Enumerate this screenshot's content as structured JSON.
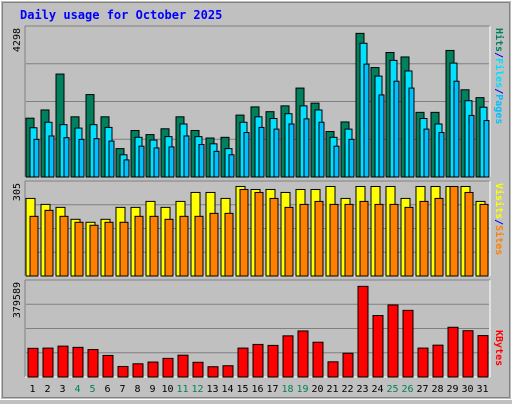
{
  "title": "Daily usage for October 2025",
  "colors": {
    "background": "#c0c0c0",
    "hits": "#00805c",
    "files": "#00e0ff",
    "pages": "#00c0ff",
    "visits": "#ffff00",
    "sites": "#ff8000",
    "kbytes": "#ff0000",
    "title_text": "#0000ff"
  },
  "chart_data": [
    {
      "type": "bar",
      "categories": [
        "1",
        "2",
        "3",
        "4",
        "5",
        "6",
        "7",
        "8",
        "9",
        "10",
        "11",
        "12",
        "13",
        "14",
        "15",
        "16",
        "17",
        "18",
        "19",
        "20",
        "21",
        "22",
        "23",
        "24",
        "25",
        "26",
        "27",
        "28",
        "29",
        "30",
        "31"
      ],
      "weekend_categories": [
        "4",
        "5",
        "11",
        "12",
        "18",
        "19",
        "25",
        "26"
      ],
      "axis_max_label": "4298",
      "ylim": [
        0,
        4298
      ],
      "series": [
        {
          "name": "Hits",
          "values": [
            1720,
            1960,
            3010,
            1760,
            2410,
            1760,
            830,
            1360,
            1240,
            1410,
            1760,
            1360,
            1140,
            1160,
            1810,
            2050,
            1910,
            2080,
            2600,
            2160,
            1330,
            1610,
            4200,
            3200,
            3640,
            3510,
            1890,
            1890,
            3700,
            2550,
            2320
          ]
        },
        {
          "name": "Files",
          "values": [
            1440,
            1600,
            1530,
            1430,
            1530,
            1450,
            650,
            1160,
            1080,
            1180,
            1550,
            1180,
            970,
            830,
            1600,
            1760,
            1710,
            1850,
            2080,
            1960,
            1160,
            1400,
            3910,
            2950,
            3410,
            3100,
            1710,
            1550,
            3330,
            2230,
            2040
          ]
        },
        {
          "name": "Pages",
          "values": [
            1100,
            1200,
            1150,
            1100,
            1120,
            1050,
            500,
            900,
            850,
            880,
            1200,
            950,
            750,
            650,
            1300,
            1450,
            1400,
            1550,
            1700,
            1600,
            900,
            1100,
            3300,
            2400,
            2800,
            2600,
            1400,
            1300,
            2800,
            1800,
            1650
          ]
        }
      ],
      "axis_labels": [
        {
          "text": "Pages",
          "color_key": "pages"
        },
        {
          "text": "/",
          "color_key": "title_text"
        },
        {
          "text": "Files",
          "color_key": "files"
        },
        {
          "text": "/",
          "color_key": "title_text"
        },
        {
          "text": "Hits",
          "color_key": "hits"
        }
      ]
    },
    {
      "type": "bar",
      "categories": [
        "1",
        "2",
        "3",
        "4",
        "5",
        "6",
        "7",
        "8",
        "9",
        "10",
        "11",
        "12",
        "13",
        "14",
        "15",
        "16",
        "17",
        "18",
        "19",
        "20",
        "21",
        "22",
        "23",
        "24",
        "25",
        "26",
        "27",
        "28",
        "29",
        "30",
        "31"
      ],
      "axis_max_label": "305",
      "ylim": [
        0,
        305
      ],
      "series": [
        {
          "name": "Visits",
          "values": [
            260,
            240,
            230,
            190,
            180,
            190,
            230,
            230,
            250,
            230,
            250,
            280,
            280,
            260,
            300,
            290,
            290,
            280,
            290,
            290,
            300,
            260,
            300,
            300,
            300,
            260,
            300,
            300,
            300,
            300,
            250
          ]
        },
        {
          "name": "Sites",
          "values": [
            200,
            220,
            200,
            180,
            170,
            180,
            180,
            200,
            200,
            190,
            200,
            200,
            210,
            210,
            290,
            280,
            260,
            230,
            240,
            250,
            240,
            240,
            250,
            240,
            240,
            230,
            250,
            260,
            300,
            280,
            240
          ]
        }
      ],
      "axis_labels": [
        {
          "text": "Sites",
          "color_key": "sites"
        },
        {
          "text": "/",
          "color_key": "title_text"
        },
        {
          "text": "Visits",
          "color_key": "visits"
        }
      ]
    },
    {
      "type": "bar",
      "categories": [
        "1",
        "2",
        "3",
        "4",
        "5",
        "6",
        "7",
        "8",
        "9",
        "10",
        "11",
        "12",
        "13",
        "14",
        "15",
        "16",
        "17",
        "18",
        "19",
        "20",
        "21",
        "22",
        "23",
        "24",
        "25",
        "26",
        "27",
        "28",
        "29",
        "30",
        "31"
      ],
      "axis_max_label": "379589",
      "ylim": [
        0,
        379589
      ],
      "series": [
        {
          "name": "KBytes",
          "values": [
            117000,
            118000,
            126000,
            121000,
            112000,
            88000,
            43000,
            54000,
            61000,
            76000,
            89000,
            60000,
            42000,
            46000,
            118000,
            133000,
            129000,
            168000,
            188000,
            142000,
            62000,
            97000,
            370000,
            251000,
            294000,
            272000,
            118000,
            130000,
            203000,
            189000,
            169000
          ]
        }
      ],
      "axis_labels": [
        {
          "text": "KBytes",
          "color_key": "kbytes"
        }
      ]
    }
  ]
}
